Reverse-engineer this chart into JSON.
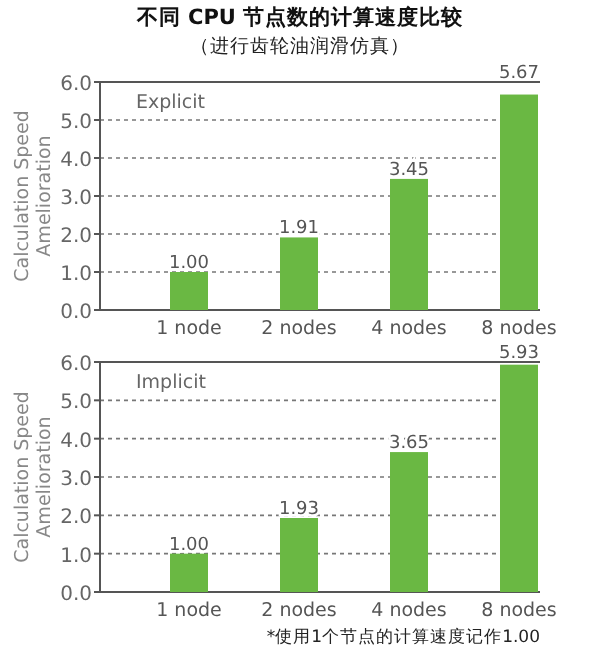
{
  "chart_data": [
    {
      "type": "bar",
      "title": "不同 CPU 节点数的计算速度比较",
      "subtitle": "（进行齿轮油润滑仿真）",
      "ylabel": "Calculation Speed Amelioration",
      "annotations": [
        "Explicit"
      ],
      "categories": [
        "1 node",
        "2 nodes",
        "4 nodes",
        "8 nodes"
      ],
      "values": [
        1.0,
        1.91,
        3.45,
        5.67
      ],
      "value_labels": [
        "1.00",
        "1.91",
        "3.45",
        "5.67"
      ],
      "color": "#6ab843",
      "ylim": [
        0,
        6
      ],
      "yticks": [
        {
          "value": 0,
          "label": "0.0"
        },
        {
          "value": 1,
          "label": "1.0"
        },
        {
          "value": 2,
          "label": "2.0"
        },
        {
          "value": 3,
          "label": "3.0"
        },
        {
          "value": 4,
          "label": "4.0"
        },
        {
          "value": 5,
          "label": "5.0"
        },
        {
          "value": 6,
          "label": "6.0"
        }
      ],
      "grid": "y"
    },
    {
      "type": "bar",
      "ylabel": "Calculation Speed Amelioration",
      "annotations": [
        "Implicit",
        "*使用1个节点的计算速度记作1.00"
      ],
      "categories": [
        "1 node",
        "2 nodes",
        "4 nodes",
        "8 nodes"
      ],
      "values": [
        1.0,
        1.93,
        3.65,
        5.93
      ],
      "value_labels": [
        "1.00",
        "1.93",
        "3.65",
        "5.93"
      ],
      "color": "#6ab843",
      "ylim": [
        0,
        6
      ],
      "yticks": [
        {
          "value": 0,
          "label": "0.0"
        },
        {
          "value": 1,
          "label": "1.0"
        },
        {
          "value": 2,
          "label": "2.0"
        },
        {
          "value": 3,
          "label": "3.0"
        },
        {
          "value": 4,
          "label": "4.0"
        },
        {
          "value": 5,
          "label": "5.0"
        },
        {
          "value": 6,
          "label": "6.0"
        }
      ],
      "grid": "y"
    }
  ]
}
